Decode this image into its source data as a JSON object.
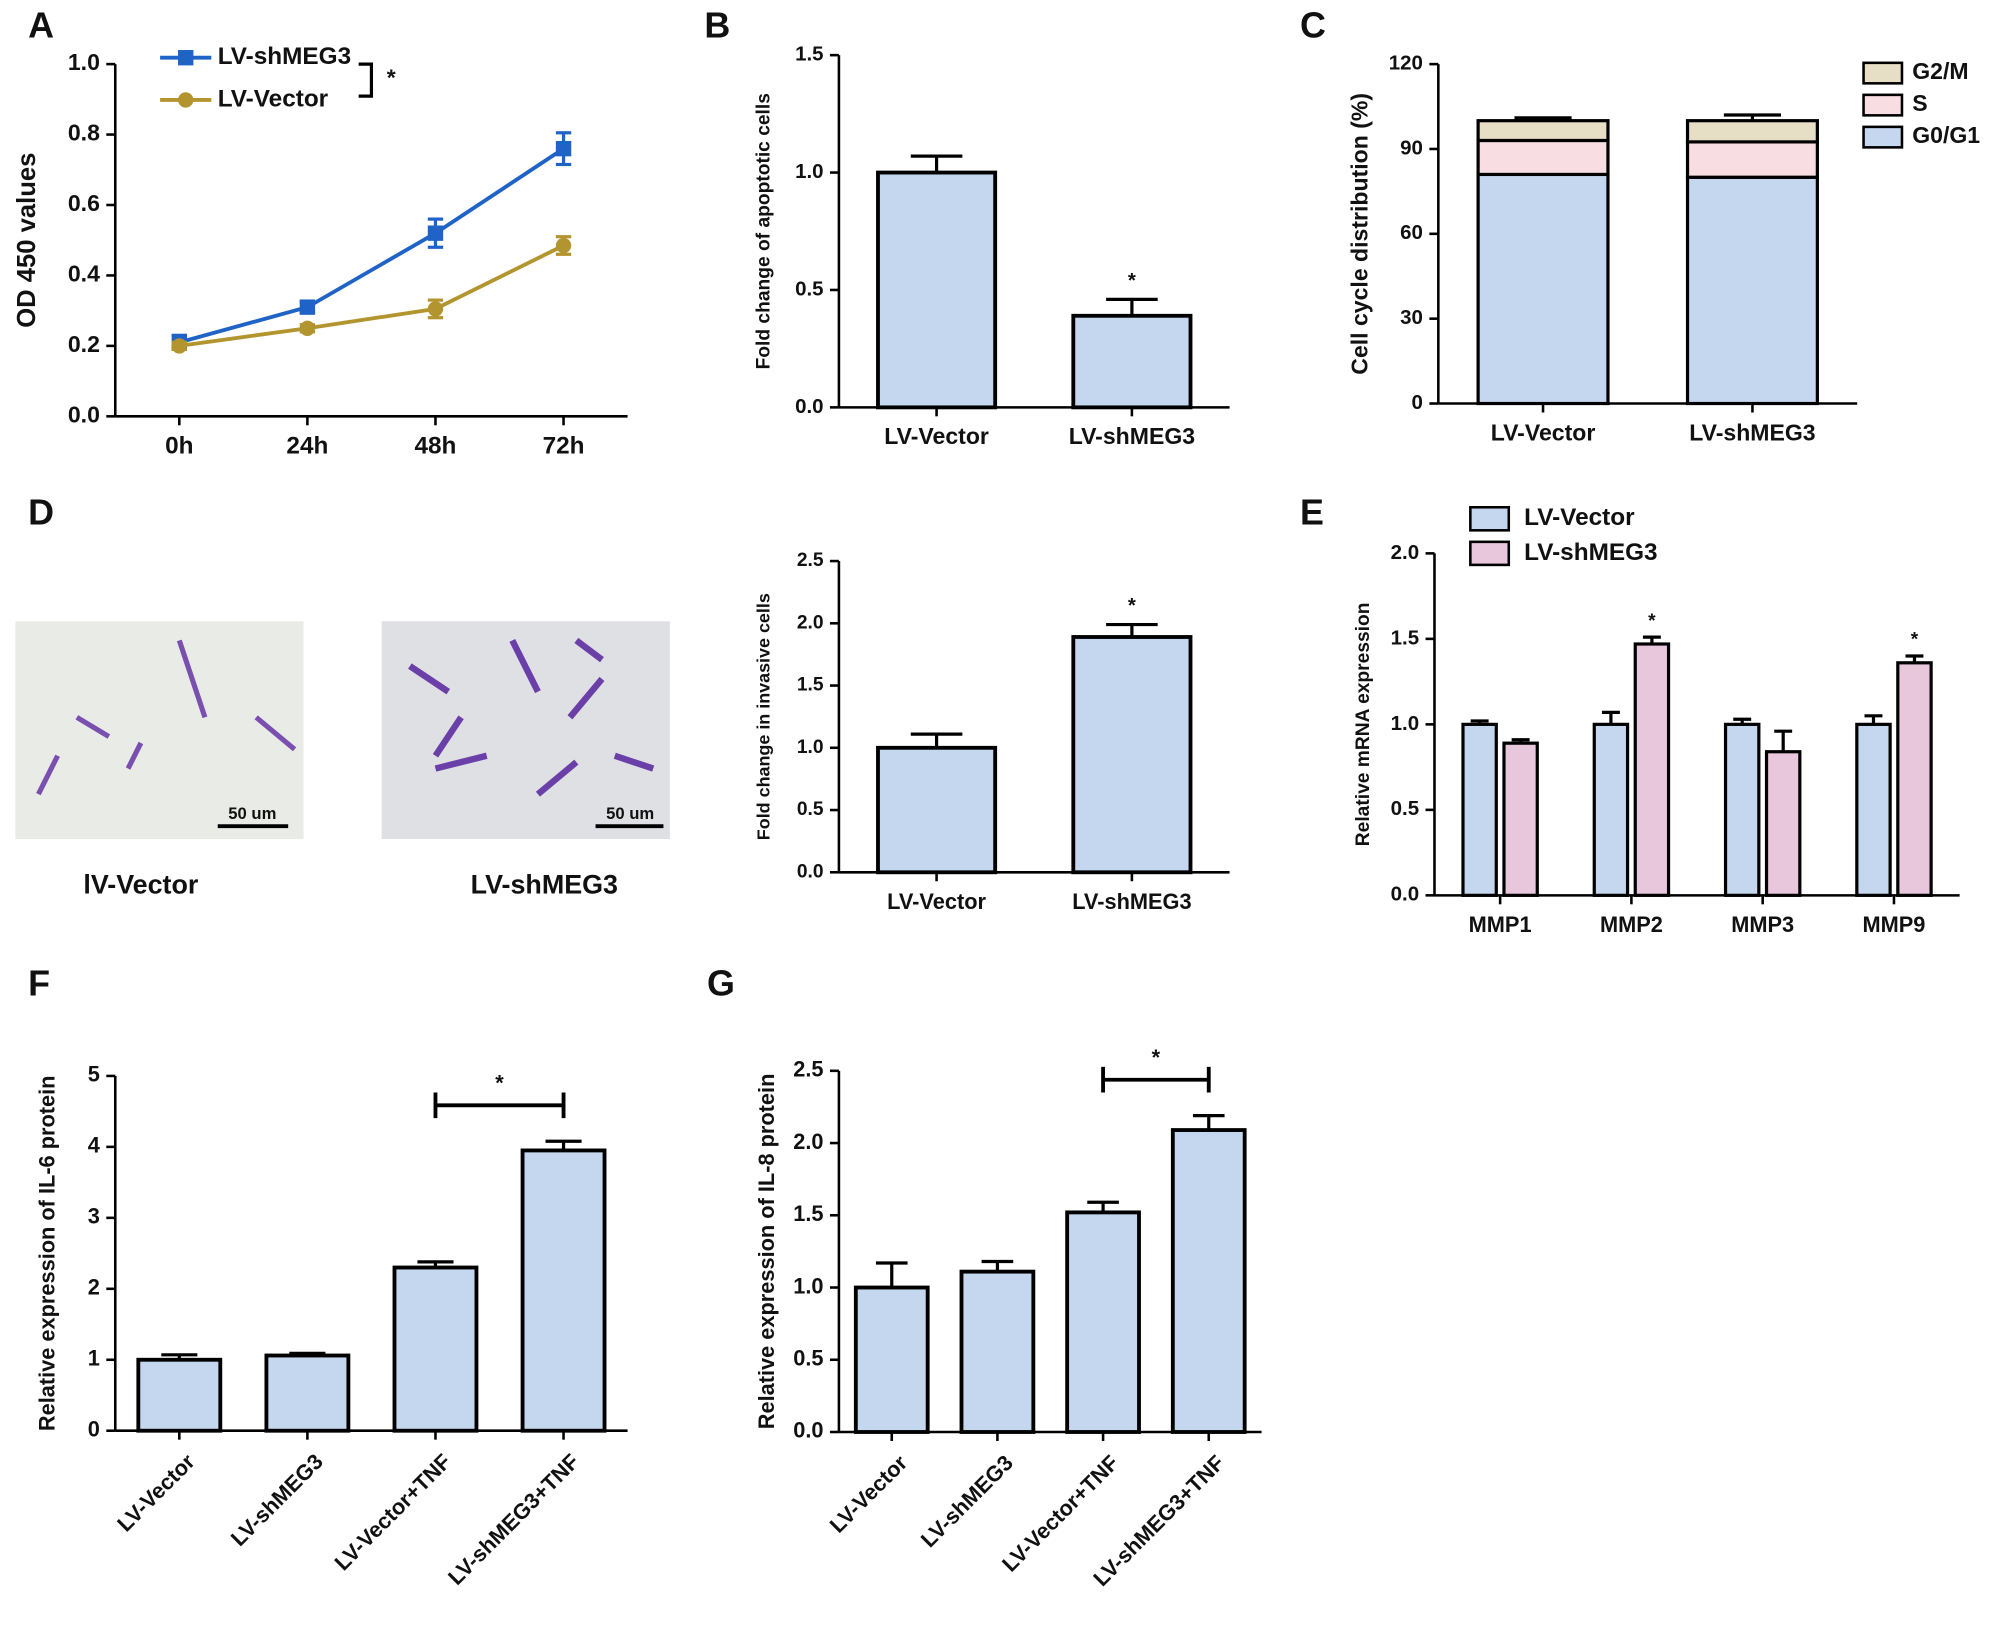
{
  "chart_data": [
    {
      "type": "line",
      "panel": "A",
      "ylabel": "OD 450 values",
      "categories": [
        "0h",
        "24h",
        "48h",
        "72h"
      ],
      "series": [
        {
          "name": "LV-shMEG3",
          "color": "#1f63c6",
          "marker": "square",
          "values": [
            0.21,
            0.31,
            0.52,
            0.76
          ],
          "errors": [
            0.02,
            0.015,
            0.04,
            0.045
          ]
        },
        {
          "name": "LV-Vector",
          "color": "#b39530",
          "marker": "circle",
          "values": [
            0.2,
            0.25,
            0.305,
            0.485
          ],
          "errors": [
            0.01,
            0.01,
            0.025,
            0.025
          ]
        }
      ],
      "significance_label": "*",
      "ylim": [
        0,
        1
      ],
      "yticks": [
        {
          "value": 0,
          "label": "0.0"
        },
        0.2,
        0.4,
        0.6,
        0.8,
        {
          "value": 1,
          "label": "1.0"
        }
      ]
    },
    {
      "type": "bar",
      "panel": "B",
      "ylabel": "Fold change of apoptotic cells",
      "categories": [
        "LV-Vector",
        "LV-shMEG3"
      ],
      "values": [
        1.0,
        0.39
      ],
      "errors": [
        0.07,
        0.07
      ],
      "color": "#c5d7ee",
      "significance": [
        null,
        "*"
      ],
      "ylim": [
        0,
        1.5
      ],
      "yticks": [
        {
          "value": 0,
          "label": "0.0"
        },
        0.5,
        {
          "value": 1,
          "label": "1.0"
        },
        1.5
      ]
    },
    {
      "type": "stacked_bar",
      "panel": "C",
      "ylabel": "Cell cycle distribution (%)",
      "categories": [
        "LV-Vector",
        "LV-shMEG3"
      ],
      "series": [
        {
          "name": "G0/G1",
          "color": "#c5d7ee",
          "values": [
            81,
            80
          ],
          "errors": [
            1,
            1.5
          ]
        },
        {
          "name": "S",
          "color": "#f8dde2",
          "values": [
            12,
            12.5
          ],
          "errors": [
            1,
            2
          ]
        },
        {
          "name": "G2/M",
          "color": "#e6dfc5",
          "values": [
            7,
            7.5
          ],
          "errors": [
            1,
            2
          ]
        }
      ],
      "ylim": [
        0,
        120
      ],
      "yticks": [
        0,
        30,
        60,
        90,
        120
      ]
    },
    {
      "type": "bar",
      "panel": "D",
      "ylabel": "Fold change in invasive cells",
      "categories": [
        "LV-Vector",
        "LV-shMEG3"
      ],
      "image_captions": [
        "lV-Vector",
        "LV-shMEG3"
      ],
      "scale_bar_label": "50 um",
      "values": [
        1.0,
        1.89
      ],
      "errors": [
        0.11,
        0.1
      ],
      "color": "#c5d7ee",
      "significance": [
        null,
        "*"
      ],
      "ylim": [
        0,
        2.5
      ],
      "yticks": [
        {
          "value": 0,
          "label": "0.0"
        },
        0.5,
        {
          "value": 1,
          "label": "1.0"
        },
        1.5,
        {
          "value": 2,
          "label": "2.0"
        },
        2.5
      ]
    },
    {
      "type": "grouped_bar",
      "panel": "E",
      "ylabel": "Relative mRNA expression",
      "categories": [
        "MMP1",
        "MMP2",
        "MMP3",
        "MMP9"
      ],
      "series": [
        {
          "name": "LV-Vector",
          "color": "#c5d7ee",
          "values": [
            1.0,
            1.0,
            1.0,
            1.0
          ],
          "errors": [
            0.02,
            0.07,
            0.03,
            0.05
          ]
        },
        {
          "name": "LV-shMEG3",
          "color": "#e8c6dc",
          "values": [
            0.89,
            1.47,
            0.84,
            1.36
          ],
          "errors": [
            0.02,
            0.04,
            0.12,
            0.04
          ]
        }
      ],
      "significance": [
        null,
        "*",
        null,
        "*"
      ],
      "ylim": [
        0,
        2
      ],
      "yticks": [
        {
          "value": 0,
          "label": "0.0"
        },
        0.5,
        {
          "value": 1,
          "label": "1.0"
        },
        1.5,
        {
          "value": 2,
          "label": "2.0"
        }
      ]
    },
    {
      "type": "bar",
      "panel": "F",
      "ylabel": "Relative expression of IL-6 protein",
      "categories": [
        "LV-Vector",
        "LV-shMEG3",
        "LV-Vector+TNF",
        "LV-shMEG3+TNF"
      ],
      "values": [
        1.0,
        1.06,
        2.3,
        3.95
      ],
      "errors": [
        0.07,
        0.03,
        0.08,
        0.13
      ],
      "color": "#c5d7ee",
      "comparison": {
        "from": "LV-Vector+TNF",
        "to": "LV-shMEG3+TNF",
        "label": "*"
      },
      "ylim": [
        0,
        5
      ],
      "yticks": [
        0,
        1,
        2,
        3,
        4,
        5
      ]
    },
    {
      "type": "bar",
      "panel": "G",
      "ylabel": "Relative expression of IL-8 protein",
      "categories": [
        "LV-Vector",
        "LV-shMEG3",
        "LV-Vector+TNF",
        "LV-shMEG3+TNF"
      ],
      "values": [
        1.0,
        1.11,
        1.52,
        2.09
      ],
      "errors": [
        0.17,
        0.07,
        0.07,
        0.1
      ],
      "color": "#c5d7ee",
      "comparison": {
        "from": "LV-Vector+TNF",
        "to": "LV-shMEG3+TNF",
        "label": "*"
      },
      "ylim": [
        0,
        2.5
      ],
      "yticks": [
        {
          "value": 0,
          "label": "0.0"
        },
        0.5,
        {
          "value": 1,
          "label": "1.0"
        },
        1.5,
        {
          "value": 2,
          "label": "2.0"
        },
        2.5
      ]
    }
  ]
}
